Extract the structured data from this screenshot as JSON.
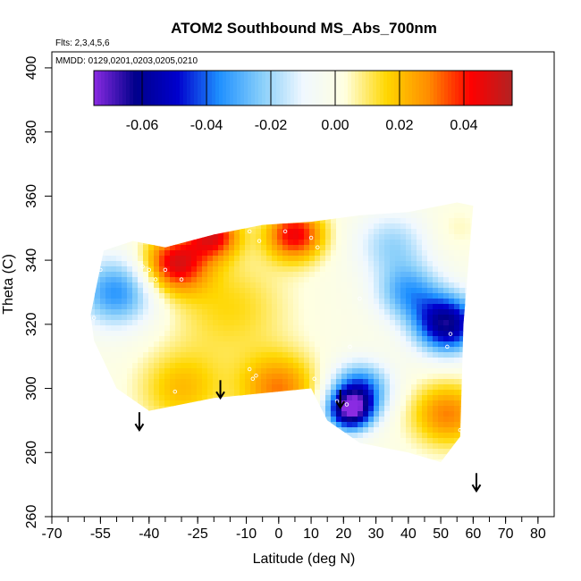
{
  "chart_data": {
    "type": "heatmap",
    "title": "ATOM2 Southbound MS_Abs_700nm",
    "annotations": [
      "Flts: 2,3,4,5,6",
      "MMDD: 0129,0201,0203,0205,0210"
    ],
    "xlabel": "Latitude (deg N)",
    "ylabel": "Theta (C)",
    "xlim": [
      -70,
      85
    ],
    "ylim": [
      260,
      405
    ],
    "x_ticks": [
      -70,
      -55,
      -40,
      -25,
      -10,
      0,
      10,
      20,
      30,
      40,
      50,
      60,
      70,
      80
    ],
    "x_tick_labels": [
      "-70",
      "-55",
      "-40",
      "-25",
      "-10",
      "0",
      "10",
      "20",
      "30",
      "40",
      "50",
      "60",
      "70",
      "80"
    ],
    "y_ticks": [
      260,
      280,
      300,
      320,
      340,
      360,
      380,
      400
    ],
    "y_tick_labels": [
      "260",
      "280",
      "300",
      "320",
      "340",
      "360",
      "380",
      "400"
    ],
    "colorbar": {
      "range": [
        -0.075,
        0.055
      ],
      "ticks": [
        -0.06,
        -0.04,
        -0.02,
        0.0,
        0.02,
        0.04
      ],
      "tick_labels": [
        "-0.06",
        "-0.04",
        "-0.02",
        "0.00",
        "0.02",
        "0.04"
      ],
      "colors": [
        "#8a2be2",
        "#00008b",
        "#0000cd",
        "#1e90ff",
        "#87cefa",
        "#f0f8ff",
        "#ffffe0",
        "#ffd700",
        "#ff8c00",
        "#ff0000",
        "#b22222"
      ]
    },
    "region": [
      [
        -58,
        323
      ],
      [
        -54,
        343
      ],
      [
        -45,
        346
      ],
      [
        -35,
        344
      ],
      [
        -20,
        348
      ],
      [
        -5,
        351
      ],
      [
        10,
        352
      ],
      [
        25,
        354
      ],
      [
        40,
        355
      ],
      [
        55,
        358
      ],
      [
        60,
        357
      ],
      [
        57,
        320
      ],
      [
        56,
        285
      ],
      [
        50,
        277
      ],
      [
        40,
        280
      ],
      [
        25,
        283
      ],
      [
        15,
        290
      ],
      [
        10,
        300
      ],
      [
        -20,
        297
      ],
      [
        -40,
        293
      ],
      [
        -50,
        300
      ],
      [
        -57,
        315
      ]
    ],
    "anomalies": [
      {
        "lat": -32,
        "theta": 339,
        "value": 0.046,
        "spread": 10
      },
      {
        "lat": -20,
        "theta": 348,
        "value": 0.042,
        "spread": 8
      },
      {
        "lat": 5,
        "theta": 348,
        "value": 0.044,
        "spread": 9
      },
      {
        "lat": -15,
        "theta": 325,
        "value": 0.015,
        "spread": 18
      },
      {
        "lat": -30,
        "theta": 300,
        "value": 0.02,
        "spread": 13
      },
      {
        "lat": 0,
        "theta": 300,
        "value": 0.03,
        "spread": 12
      },
      {
        "lat": 52,
        "theta": 292,
        "value": 0.03,
        "spread": 11
      },
      {
        "lat": -50,
        "theta": 330,
        "value": -0.035,
        "spread": 12
      },
      {
        "lat": 22,
        "theta": 293,
        "value": -0.065,
        "spread": 7
      },
      {
        "lat": 25,
        "theta": 300,
        "value": -0.04,
        "spread": 9
      },
      {
        "lat": 52,
        "theta": 320,
        "value": -0.062,
        "spread": 10
      },
      {
        "lat": 40,
        "theta": 330,
        "value": -0.03,
        "spread": 10
      },
      {
        "lat": 35,
        "theta": 345,
        "value": -0.02,
        "spread": 11
      },
      {
        "lat": 55,
        "theta": 350,
        "value": 0.005,
        "spread": 8
      }
    ],
    "sample_points": [
      {
        "lat": -55,
        "theta": 337
      },
      {
        "lat": -42,
        "theta": 338
      },
      {
        "lat": -40,
        "theta": 337
      },
      {
        "lat": -35,
        "theta": 337
      },
      {
        "lat": -38,
        "theta": 334
      },
      {
        "lat": -30,
        "theta": 334
      },
      {
        "lat": -10,
        "theta": 351
      },
      {
        "lat": -9,
        "theta": 349
      },
      {
        "lat": -6,
        "theta": 346
      },
      {
        "lat": 2,
        "theta": 349
      },
      {
        "lat": 10,
        "theta": 347
      },
      {
        "lat": 12,
        "theta": 344
      },
      {
        "lat": -57,
        "theta": 322
      },
      {
        "lat": 25,
        "theta": 328
      },
      {
        "lat": 22,
        "theta": 313
      },
      {
        "lat": 53,
        "theta": 317
      },
      {
        "lat": 52,
        "theta": 313
      },
      {
        "lat": -9,
        "theta": 306
      },
      {
        "lat": -8,
        "theta": 303
      },
      {
        "lat": -7,
        "theta": 304
      },
      {
        "lat": -32,
        "theta": 299
      },
      {
        "lat": 11,
        "theta": 303
      },
      {
        "lat": 18,
        "theta": 296
      },
      {
        "lat": 21,
        "theta": 295
      },
      {
        "lat": 56,
        "theta": 287
      }
    ],
    "arrows": [
      {
        "lat": -43,
        "theta": 287
      },
      {
        "lat": -18,
        "theta": 297
      },
      {
        "lat": 19,
        "theta": 294
      },
      {
        "lat": 61,
        "theta": 268
      }
    ]
  }
}
